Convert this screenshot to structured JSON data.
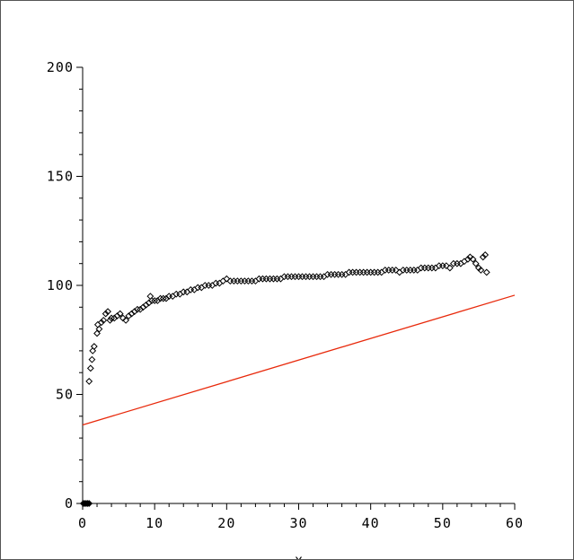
{
  "chart_data": {
    "type": "scatter",
    "title": "",
    "xlabel": "x",
    "ylabel": "",
    "xlim": [
      0,
      60
    ],
    "ylim": [
      0,
      200
    ],
    "xticks": [
      "0",
      "10",
      "20",
      "30",
      "40",
      "50",
      "60"
    ],
    "yticks": [
      "0",
      "50",
      "100",
      "150",
      "200"
    ],
    "grid": false,
    "legend": "none",
    "colors": {
      "points": "#000000",
      "fit_line": "#e8290b",
      "axes": "#000000",
      "frame": "#555555"
    },
    "series": [
      {
        "kind": "scatter",
        "marker": "diamond",
        "points": [
          [
            0.9,
            56
          ],
          [
            1.1,
            62
          ],
          [
            1.3,
            66
          ],
          [
            1.4,
            70
          ],
          [
            1.6,
            72
          ],
          [
            2.0,
            78
          ],
          [
            2.1,
            82
          ],
          [
            2.3,
            80
          ],
          [
            2.6,
            83
          ],
          [
            2.9,
            84
          ],
          [
            3.2,
            87
          ],
          [
            3.5,
            88
          ],
          [
            3.8,
            84
          ],
          [
            4.0,
            85
          ],
          [
            4.4,
            85
          ],
          [
            4.8,
            86
          ],
          [
            5.2,
            87
          ],
          [
            5.6,
            85
          ],
          [
            6.0,
            84
          ],
          [
            6.4,
            86
          ],
          [
            6.8,
            87
          ],
          [
            7.2,
            88
          ],
          [
            7.6,
            89
          ],
          [
            8.0,
            89
          ],
          [
            8.4,
            90
          ],
          [
            8.8,
            91
          ],
          [
            9.2,
            92
          ],
          [
            9.4,
            95
          ],
          [
            9.6,
            93
          ],
          [
            10.0,
            93
          ],
          [
            10.4,
            93
          ],
          [
            10.8,
            94
          ],
          [
            11.2,
            94
          ],
          [
            11.6,
            94
          ],
          [
            12.0,
            95
          ],
          [
            12.5,
            95
          ],
          [
            13.0,
            96
          ],
          [
            13.5,
            96
          ],
          [
            14.0,
            97
          ],
          [
            14.5,
            97
          ],
          [
            15.0,
            98
          ],
          [
            15.5,
            98
          ],
          [
            16.0,
            99
          ],
          [
            16.5,
            99
          ],
          [
            17.0,
            100
          ],
          [
            17.5,
            100
          ],
          [
            18.0,
            100
          ],
          [
            18.5,
            101
          ],
          [
            19.0,
            101
          ],
          [
            19.5,
            102
          ],
          [
            20.0,
            103
          ],
          [
            20.5,
            102
          ],
          [
            21.0,
            102
          ],
          [
            21.5,
            102
          ],
          [
            22.0,
            102
          ],
          [
            22.5,
            102
          ],
          [
            23.0,
            102
          ],
          [
            23.5,
            102
          ],
          [
            24.0,
            102
          ],
          [
            24.5,
            103
          ],
          [
            25.0,
            103
          ],
          [
            25.5,
            103
          ],
          [
            26.0,
            103
          ],
          [
            26.5,
            103
          ],
          [
            27.0,
            103
          ],
          [
            27.5,
            103
          ],
          [
            28.0,
            104
          ],
          [
            28.5,
            104
          ],
          [
            29.0,
            104
          ],
          [
            29.5,
            104
          ],
          [
            30.0,
            104
          ],
          [
            30.5,
            104
          ],
          [
            31.0,
            104
          ],
          [
            31.5,
            104
          ],
          [
            32.0,
            104
          ],
          [
            32.5,
            104
          ],
          [
            33.0,
            104
          ],
          [
            33.5,
            104
          ],
          [
            34.0,
            105
          ],
          [
            34.5,
            105
          ],
          [
            35.0,
            105
          ],
          [
            35.5,
            105
          ],
          [
            36.0,
            105
          ],
          [
            36.5,
            105
          ],
          [
            37.0,
            106
          ],
          [
            37.5,
            106
          ],
          [
            38.0,
            106
          ],
          [
            38.5,
            106
          ],
          [
            39.0,
            106
          ],
          [
            39.5,
            106
          ],
          [
            40.0,
            106
          ],
          [
            40.5,
            106
          ],
          [
            41.0,
            106
          ],
          [
            41.5,
            106
          ],
          [
            42.0,
            107
          ],
          [
            42.5,
            107
          ],
          [
            43.0,
            107
          ],
          [
            43.5,
            107
          ],
          [
            44.0,
            106
          ],
          [
            44.5,
            107
          ],
          [
            45.0,
            107
          ],
          [
            45.5,
            107
          ],
          [
            46.0,
            107
          ],
          [
            46.5,
            107
          ],
          [
            47.0,
            108
          ],
          [
            47.5,
            108
          ],
          [
            48.0,
            108
          ],
          [
            48.5,
            108
          ],
          [
            49.0,
            108
          ],
          [
            49.5,
            109
          ],
          [
            50.0,
            109
          ],
          [
            50.5,
            109
          ],
          [
            51.0,
            108
          ],
          [
            51.5,
            110
          ],
          [
            52.0,
            110
          ],
          [
            52.5,
            110
          ],
          [
            53.0,
            111
          ],
          [
            53.5,
            112
          ],
          [
            53.8,
            113
          ],
          [
            54.2,
            112
          ],
          [
            54.6,
            110
          ],
          [
            55.0,
            108
          ],
          [
            55.3,
            107
          ],
          [
            55.6,
            113
          ],
          [
            55.9,
            114
          ],
          [
            56.1,
            106
          ]
        ]
      },
      {
        "kind": "line",
        "points": [
          [
            0,
            36
          ],
          [
            60,
            95.5
          ]
        ]
      },
      {
        "kind": "scatter",
        "marker": "filled-diamond",
        "points": [
          [
            0.1,
            0
          ],
          [
            0.3,
            0
          ],
          [
            0.5,
            0
          ],
          [
            0.7,
            0
          ],
          [
            0.9,
            0
          ]
        ]
      }
    ]
  }
}
